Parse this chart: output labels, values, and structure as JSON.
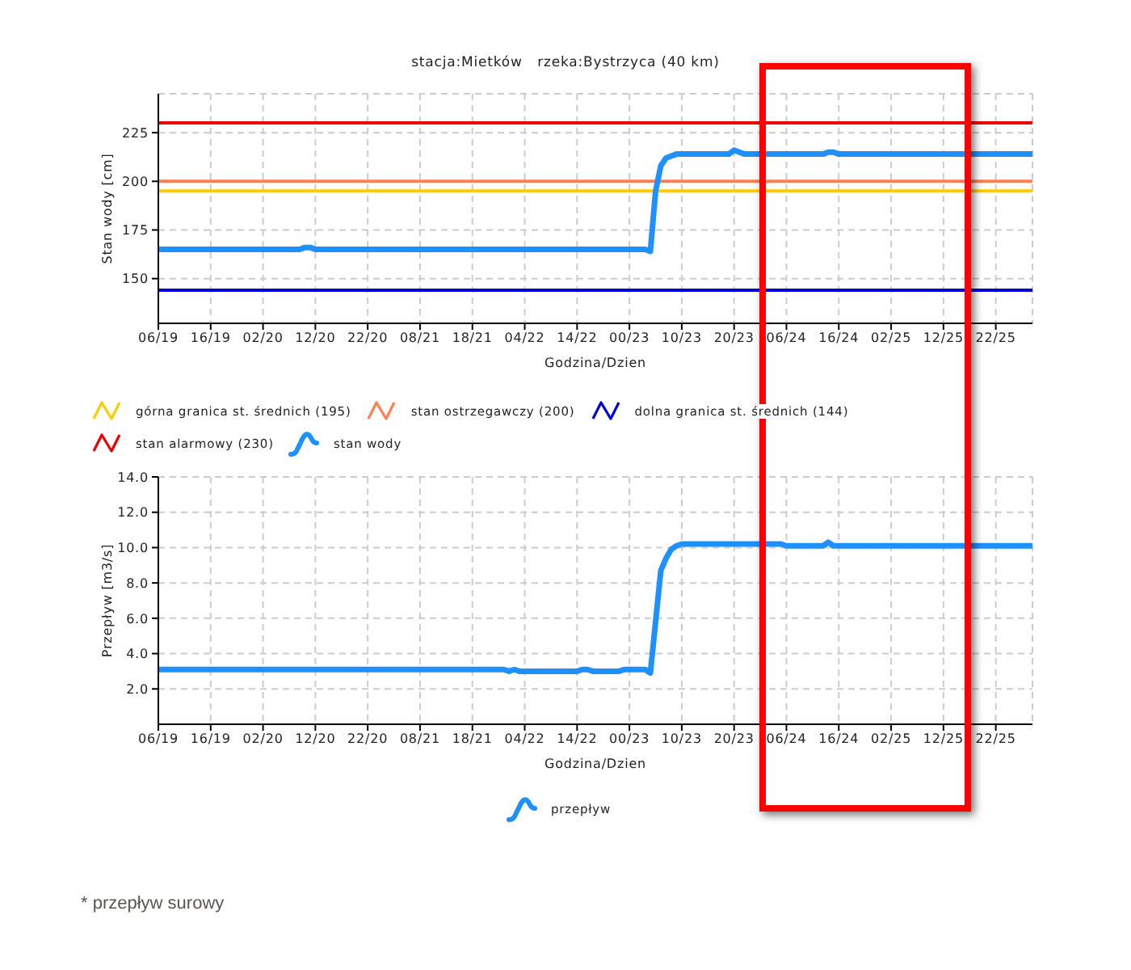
{
  "chart_data": [
    {
      "type": "line",
      "title": "stacja:Mietków   rzeka:Bystrzyca (40 km)",
      "xlabel": "Godzina/Dzien",
      "ylabel": "Stan wody [cm]",
      "categories": [
        "06/19",
        null,
        null,
        null,
        null,
        null,
        null,
        null,
        null,
        null,
        "16/19",
        null,
        null,
        null,
        null,
        null,
        null,
        null,
        null,
        null,
        "02/20",
        null,
        null,
        null,
        null,
        null,
        null,
        null,
        null,
        null,
        "12/20",
        null,
        null,
        null,
        null,
        null,
        null,
        null,
        null,
        null,
        "22/20",
        null,
        null,
        null,
        null,
        null,
        null,
        null,
        null,
        null,
        "08/21",
        null,
        null,
        null,
        null,
        null,
        null,
        null,
        null,
        null,
        "18/21",
        null,
        null,
        null,
        null,
        null,
        null,
        null,
        null,
        null,
        "04/22",
        null,
        null,
        null,
        null,
        null,
        null,
        null,
        null,
        null,
        "14/22",
        null,
        null,
        null,
        null,
        null,
        null,
        null,
        null,
        null,
        "00/23",
        null,
        null,
        null,
        null,
        null,
        null,
        null,
        null,
        null,
        "10/23",
        null,
        null,
        null,
        null,
        null,
        null,
        null,
        null,
        null,
        "20/23",
        null,
        null,
        null,
        null,
        null,
        null,
        null,
        null,
        null,
        "06/24",
        null,
        null,
        null,
        null,
        null,
        null,
        null,
        null,
        null,
        "16/24",
        null,
        null,
        null,
        null,
        null,
        null,
        null,
        null,
        null,
        "02/25",
        null,
        null,
        null,
        null,
        null,
        null,
        null,
        null,
        null,
        "12/25",
        null,
        null,
        null,
        null,
        null,
        null,
        null,
        null,
        null,
        "22/25",
        null,
        null,
        null,
        null,
        null,
        null,
        null
      ],
      "ylim": [
        127,
        245
      ],
      "yticks": [
        150,
        175,
        200,
        225
      ],
      "grid": true,
      "legend": "bottom",
      "ref_lines": [
        {
          "axis": "y",
          "value": 195,
          "label": "górna granica st. średnich (195)",
          "color": "#ffcc00"
        },
        {
          "axis": "y",
          "value": 200,
          "label": "stan ostrzegawczy (200)",
          "color": "#ff7f50"
        },
        {
          "axis": "y",
          "value": 144,
          "label": "dolna granica st. średnich (144)",
          "color": "#0000dd"
        },
        {
          "axis": "y",
          "value": 230,
          "label": "stan alarmowy (230)",
          "color": "#ee0000"
        }
      ],
      "series": [
        {
          "name": "stan wody",
          "color": "#1e90ff",
          "values": [
            165,
            165,
            165,
            165,
            165,
            165,
            165,
            165,
            165,
            165,
            165,
            165,
            165,
            165,
            165,
            165,
            165,
            165,
            165,
            165,
            165,
            165,
            165,
            165,
            165,
            165,
            165,
            165,
            166,
            166,
            165,
            165,
            165,
            165,
            165,
            165,
            165,
            165,
            165,
            165,
            165,
            165,
            165,
            165,
            165,
            165,
            165,
            165,
            165,
            165,
            165,
            165,
            165,
            165,
            165,
            165,
            165,
            165,
            165,
            165,
            165,
            165,
            165,
            165,
            165,
            165,
            165,
            165,
            165,
            165,
            165,
            165,
            165,
            165,
            165,
            165,
            165,
            165,
            165,
            165,
            165,
            165,
            165,
            165,
            165,
            165,
            165,
            165,
            165,
            165,
            165,
            165,
            165,
            165,
            164,
            195,
            208,
            212,
            213,
            214,
            214,
            214,
            214,
            214,
            214,
            214,
            214,
            214,
            214,
            214,
            216,
            215,
            214,
            214,
            214,
            214,
            214,
            214,
            214,
            214,
            214,
            214,
            214,
            214,
            214,
            214,
            214,
            214,
            215,
            215,
            214,
            214,
            214,
            214,
            214,
            214,
            214,
            214,
            214,
            214,
            214,
            214,
            214,
            214,
            214,
            214,
            214,
            214,
            214,
            214,
            214,
            214,
            214,
            214,
            214,
            214,
            214,
            214,
            214,
            214,
            214,
            214,
            214,
            214,
            214,
            214,
            214,
            214
          ]
        }
      ]
    },
    {
      "type": "line",
      "xlabel": "Godzina/Dzien",
      "ylabel": "Przepływ [m3/s]",
      "categories": [
        "06/19",
        null,
        null,
        null,
        null,
        null,
        null,
        null,
        null,
        null,
        "16/19",
        null,
        null,
        null,
        null,
        null,
        null,
        null,
        null,
        null,
        "02/20",
        null,
        null,
        null,
        null,
        null,
        null,
        null,
        null,
        null,
        "12/20",
        null,
        null,
        null,
        null,
        null,
        null,
        null,
        null,
        null,
        "22/20",
        null,
        null,
        null,
        null,
        null,
        null,
        null,
        null,
        null,
        "08/21",
        null,
        null,
        null,
        null,
        null,
        null,
        null,
        null,
        null,
        "18/21",
        null,
        null,
        null,
        null,
        null,
        null,
        null,
        null,
        null,
        "04/22",
        null,
        null,
        null,
        null,
        null,
        null,
        null,
        null,
        null,
        "14/22",
        null,
        null,
        null,
        null,
        null,
        null,
        null,
        null,
        null,
        "00/23",
        null,
        null,
        null,
        null,
        null,
        null,
        null,
        null,
        null,
        "10/23",
        null,
        null,
        null,
        null,
        null,
        null,
        null,
        null,
        null,
        "20/23",
        null,
        null,
        null,
        null,
        null,
        null,
        null,
        null,
        null,
        "06/24",
        null,
        null,
        null,
        null,
        null,
        null,
        null,
        null,
        null,
        "16/24",
        null,
        null,
        null,
        null,
        null,
        null,
        null,
        null,
        null,
        "02/25",
        null,
        null,
        null,
        null,
        null,
        null,
        null,
        null,
        null,
        "12/25",
        null,
        null,
        null,
        null,
        null,
        null,
        null,
        null,
        null,
        "22/25",
        null,
        null,
        null,
        null,
        null,
        null,
        null
      ],
      "ylim": [
        0,
        14
      ],
      "yticks": [
        {
          "value": 2,
          "label": "2.0"
        },
        {
          "value": 4,
          "label": "4.0"
        },
        {
          "value": 6,
          "label": "6.0"
        },
        {
          "value": 8,
          "label": "8.0"
        },
        {
          "value": 10,
          "label": "10.0"
        },
        {
          "value": 12,
          "label": "12.0"
        },
        {
          "value": 14,
          "label": "14.0"
        }
      ],
      "grid": true,
      "legend": "bottom",
      "annotations": [
        "* przepływ surowy"
      ],
      "series": [
        {
          "name": "przepływ",
          "color": "#1e90ff",
          "values": [
            3.1,
            3.1,
            3.1,
            3.1,
            3.1,
            3.1,
            3.1,
            3.1,
            3.1,
            3.1,
            3.1,
            3.1,
            3.1,
            3.1,
            3.1,
            3.1,
            3.1,
            3.1,
            3.1,
            3.1,
            3.1,
            3.1,
            3.1,
            3.1,
            3.1,
            3.1,
            3.1,
            3.1,
            3.1,
            3.1,
            3.1,
            3.1,
            3.1,
            3.1,
            3.1,
            3.1,
            3.1,
            3.1,
            3.1,
            3.1,
            3.1,
            3.1,
            3.1,
            3.1,
            3.1,
            3.1,
            3.1,
            3.1,
            3.1,
            3.1,
            3.1,
            3.1,
            3.1,
            3.1,
            3.1,
            3.1,
            3.1,
            3.1,
            3.1,
            3.1,
            3.1,
            3.1,
            3.1,
            3.1,
            3.1,
            3.1,
            3.1,
            3.0,
            3.1,
            3.0,
            3.0,
            3.0,
            3.0,
            3.0,
            3.0,
            3.0,
            3.0,
            3.0,
            3.0,
            3.0,
            3.0,
            3.1,
            3.1,
            3.0,
            3.0,
            3.0,
            3.0,
            3.0,
            3.0,
            3.1,
            3.1,
            3.1,
            3.1,
            3.1,
            2.9,
            5.8,
            8.7,
            9.4,
            9.9,
            10.1,
            10.2,
            10.2,
            10.2,
            10.2,
            10.2,
            10.2,
            10.2,
            10.2,
            10.2,
            10.2,
            10.2,
            10.2,
            10.2,
            10.2,
            10.2,
            10.2,
            10.2,
            10.2,
            10.2,
            10.2,
            10.1,
            10.1,
            10.1,
            10.1,
            10.1,
            10.1,
            10.1,
            10.1,
            10.3,
            10.1,
            10.1,
            10.1,
            10.1,
            10.1,
            10.1,
            10.1,
            10.1,
            10.1,
            10.1,
            10.1,
            10.1,
            10.1,
            10.1,
            10.1,
            10.1,
            10.1,
            10.1,
            10.1,
            10.1,
            10.1,
            10.1,
            10.1,
            10.1,
            10.1,
            10.1,
            10.1,
            10.1,
            10.1,
            10.1,
            10.1,
            10.1,
            10.1,
            10.1,
            10.1,
            10.1,
            10.1,
            10.1,
            10.1
          ]
        }
      ]
    }
  ]
}
